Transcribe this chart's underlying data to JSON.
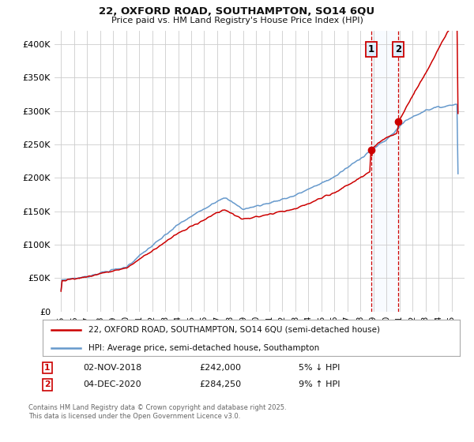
{
  "title": "22, OXFORD ROAD, SOUTHAMPTON, SO14 6QU",
  "subtitle": "Price paid vs. HM Land Registry's House Price Index (HPI)",
  "legend_line1": "22, OXFORD ROAD, SOUTHAMPTON, SO14 6QU (semi-detached house)",
  "legend_line2": "HPI: Average price, semi-detached house, Southampton",
  "annotation1_date": "02-NOV-2018",
  "annotation1_price": "£242,000",
  "annotation1_hpi": "5% ↓ HPI",
  "annotation2_date": "04-DEC-2020",
  "annotation2_price": "£284,250",
  "annotation2_hpi": "9% ↑ HPI",
  "footer": "Contains HM Land Registry data © Crown copyright and database right 2025.\nThis data is licensed under the Open Government Licence v3.0.",
  "red_color": "#cc0000",
  "blue_color": "#6699cc",
  "shaded_color": "#ddeeff",
  "vline_color": "#cc0000",
  "ylim": [
    0,
    420000
  ],
  "yticks": [
    0,
    50000,
    100000,
    150000,
    200000,
    250000,
    300000,
    350000,
    400000
  ],
  "ytick_labels": [
    "£0",
    "£50K",
    "£100K",
    "£150K",
    "£200K",
    "£250K",
    "£300K",
    "£350K",
    "£400K"
  ],
  "sale1_year": 2018.84,
  "sale1_price": 242000,
  "sale2_year": 2020.92,
  "sale2_price": 284250,
  "background_color": "#ffffff",
  "grid_color": "#cccccc"
}
